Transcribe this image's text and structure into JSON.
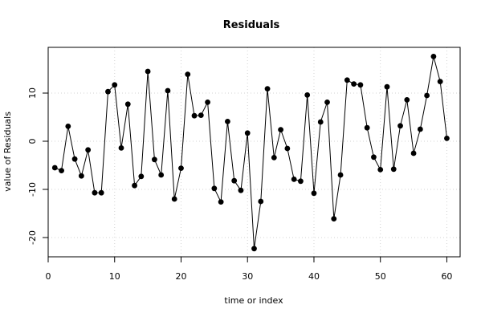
{
  "chart_data": {
    "type": "line",
    "title": "Residuals",
    "xlabel": "time or index",
    "ylabel": "value of Residuals",
    "xlim": [
      0,
      62
    ],
    "ylim": [
      -24,
      19.5
    ],
    "xticks": [
      0,
      10,
      20,
      30,
      40,
      50,
      60
    ],
    "yticks": [
      -20,
      -10,
      0,
      10
    ],
    "grid": true,
    "markers": "filled-circle",
    "series": [
      {
        "x": [
          1,
          2,
          3,
          4,
          5,
          6,
          7,
          8,
          9,
          10,
          11,
          12,
          13,
          14,
          15,
          16,
          17,
          18,
          19,
          20,
          21,
          22,
          23,
          24,
          25,
          26,
          27,
          28,
          29,
          30,
          31,
          32,
          33,
          34,
          35,
          36,
          37,
          38,
          39,
          40,
          41,
          42,
          43,
          44,
          45,
          46,
          47,
          48,
          49,
          50,
          51,
          52,
          53,
          54,
          55,
          56,
          57,
          58,
          59,
          60
        ],
        "values": [
          -5.5,
          -6.1,
          3.1,
          -3.7,
          -7.2,
          -1.8,
          -10.7,
          -10.7,
          10.3,
          11.7,
          -1.4,
          7.7,
          -9.2,
          -7.3,
          14.5,
          -3.8,
          -7.0,
          10.5,
          -12.0,
          -5.6,
          13.9,
          5.3,
          5.4,
          8.1,
          -9.8,
          -12.6,
          4.1,
          -8.2,
          -10.2,
          1.7,
          -22.3,
          -12.5,
          10.9,
          -3.4,
          2.4,
          -1.5,
          -7.9,
          -8.3,
          9.6,
          -10.8,
          4.0,
          8.1,
          -16.1,
          -7.0,
          12.7,
          11.9,
          11.7,
          2.8,
          -3.3,
          -5.9,
          11.3,
          -5.8,
          3.2,
          8.6,
          -2.5,
          2.5,
          9.5,
          17.6,
          12.4,
          0.6
        ]
      }
    ]
  }
}
